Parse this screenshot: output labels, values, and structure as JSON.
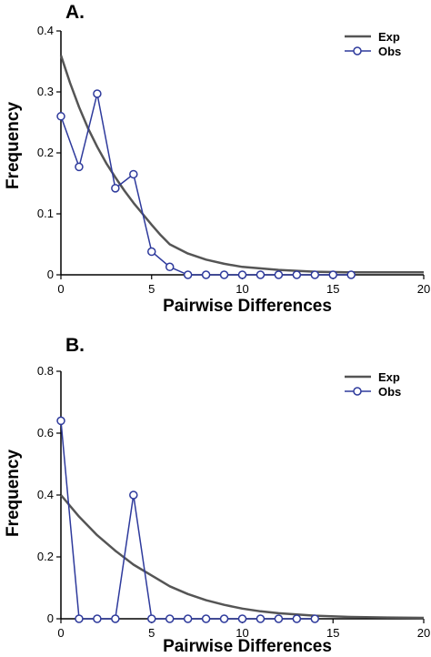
{
  "colors": {
    "expected_line": "#555555",
    "observed_line": "#2e3a9c",
    "observed_marker_fill": "#ffffff"
  },
  "chart_data": [
    {
      "type": "line",
      "panel_label": "A.",
      "xlabel": "Pairwise Differences",
      "ylabel": "Frequency",
      "xlim": [
        0,
        20
      ],
      "ylim": [
        0,
        0.4
      ],
      "xticks": [
        0,
        5,
        10,
        15,
        20
      ],
      "yticks": [
        0,
        0.1,
        0.2,
        0.3,
        0.4
      ],
      "xtick_labels": [
        "0",
        "5",
        "10",
        "15",
        "20"
      ],
      "ytick_labels": [
        "0",
        "0.1",
        "0.2",
        "0.3",
        "0.4"
      ],
      "legend": {
        "position": "top-right",
        "entries": [
          "Exp",
          "Obs"
        ]
      },
      "series": [
        {
          "name": "Exp",
          "style": "line",
          "x": [
            0,
            0.5,
            1,
            1.5,
            2,
            2.5,
            3,
            3.5,
            4,
            4.5,
            5,
            5.5,
            6,
            7,
            8,
            9,
            10,
            12,
            14,
            16,
            18,
            20
          ],
          "y": [
            0.36,
            0.315,
            0.275,
            0.24,
            0.21,
            0.183,
            0.16,
            0.138,
            0.118,
            0.1,
            0.082,
            0.065,
            0.05,
            0.035,
            0.025,
            0.018,
            0.013,
            0.008,
            0.005,
            0.004,
            0.004,
            0.004
          ]
        },
        {
          "name": "Obs",
          "style": "line-marker",
          "x": [
            0,
            1,
            2,
            3,
            4,
            5,
            6,
            7,
            8,
            9,
            10,
            11,
            12,
            13,
            14,
            15,
            16
          ],
          "y": [
            0.26,
            0.177,
            0.297,
            0.142,
            0.165,
            0.038,
            0.013,
            0.0,
            0.0,
            0.0,
            0.0,
            0.0,
            0.0,
            0.0,
            0.0,
            0.0,
            0.0
          ]
        }
      ]
    },
    {
      "type": "line",
      "panel_label": "B.",
      "xlabel": "Pairwise Differences",
      "ylabel": "Frequency",
      "xlim": [
        0,
        20
      ],
      "ylim": [
        0,
        0.8
      ],
      "xticks": [
        0,
        5,
        10,
        15,
        20
      ],
      "yticks": [
        0,
        0.2,
        0.4,
        0.6,
        0.8
      ],
      "xtick_labels": [
        "0",
        "5",
        "10",
        "15",
        "20"
      ],
      "ytick_labels": [
        "0",
        "0.2",
        "0.4",
        "0.6",
        "0.8"
      ],
      "legend": {
        "position": "top-right",
        "entries": [
          "Exp",
          "Obs"
        ]
      },
      "series": [
        {
          "name": "Exp",
          "style": "line",
          "x": [
            0,
            1,
            2,
            3,
            4,
            5,
            6,
            7,
            8,
            9,
            10,
            11,
            12,
            14,
            16,
            18,
            20
          ],
          "y": [
            0.4,
            0.33,
            0.27,
            0.22,
            0.175,
            0.14,
            0.105,
            0.08,
            0.06,
            0.045,
            0.033,
            0.024,
            0.018,
            0.01,
            0.006,
            0.004,
            0.003
          ]
        },
        {
          "name": "Obs",
          "style": "line-marker",
          "x": [
            0,
            1,
            2,
            3,
            4,
            5,
            6,
            7,
            8,
            9,
            10,
            11,
            12,
            13,
            14
          ],
          "y": [
            0.64,
            0.0,
            0.0,
            0.0,
            0.4,
            0.0,
            0.0,
            0.0,
            0.0,
            0.0,
            0.0,
            0.0,
            0.0,
            0.0,
            0.0
          ]
        }
      ]
    }
  ]
}
